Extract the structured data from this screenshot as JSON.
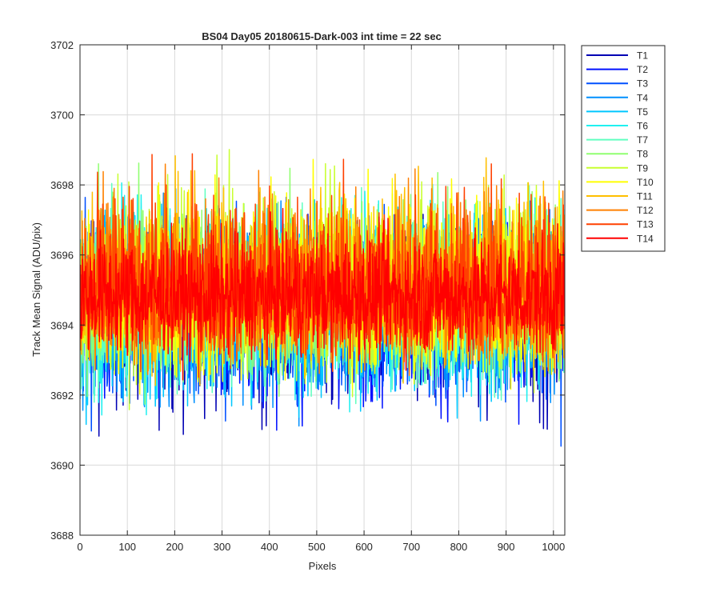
{
  "chart_data": {
    "type": "line",
    "title": "BS04 Day05 20180615-Dark-003 int time = 22 sec",
    "xlabel": "Pixels",
    "ylabel": "Track Mean Signal (ADU/pix)",
    "xlim": [
      0,
      1024
    ],
    "ylim": [
      3688,
      3702
    ],
    "xticks": [
      0,
      100,
      200,
      300,
      400,
      500,
      600,
      700,
      800,
      900,
      1000
    ],
    "yticks": [
      3688,
      3690,
      3692,
      3694,
      3696,
      3698,
      3700,
      3702
    ],
    "grid": true,
    "legend_position": "outside-top-right",
    "n_points_per_series": 1024,
    "series_mean": 3694.8,
    "series": [
      {
        "name": "T1",
        "color": "#0000b4",
        "band": [
          3690.0,
          3697.8
        ]
      },
      {
        "name": "T2",
        "color": "#0010ff",
        "band": [
          3690.2,
          3697.9
        ]
      },
      {
        "name": "T3",
        "color": "#0050ff",
        "band": [
          3690.3,
          3698.0
        ]
      },
      {
        "name": "T4",
        "color": "#0090ff",
        "band": [
          3690.4,
          3698.1
        ]
      },
      {
        "name": "T5",
        "color": "#00c8ff",
        "band": [
          3690.6,
          3698.3
        ]
      },
      {
        "name": "T6",
        "color": "#20f0f0",
        "band": [
          3690.8,
          3698.6
        ]
      },
      {
        "name": "T7",
        "color": "#60ffc0",
        "band": [
          3691.0,
          3698.9
        ]
      },
      {
        "name": "T8",
        "color": "#90ff70",
        "band": [
          3691.2,
          3699.1
        ]
      },
      {
        "name": "T9",
        "color": "#c8ff30",
        "band": [
          3691.4,
          3699.3
        ]
      },
      {
        "name": "T10",
        "color": "#ffff00",
        "band": [
          3691.6,
          3699.4
        ]
      },
      {
        "name": "T11",
        "color": "#ffbf00",
        "band": [
          3691.8,
          3699.5
        ]
      },
      {
        "name": "T12",
        "color": "#ff8000",
        "band": [
          3692.0,
          3699.6
        ]
      },
      {
        "name": "T13",
        "color": "#ff4000",
        "band": [
          3692.1,
          3699.4
        ]
      },
      {
        "name": "T14",
        "color": "#ff0000",
        "band": [
          3692.3,
          3697.5
        ]
      }
    ]
  }
}
